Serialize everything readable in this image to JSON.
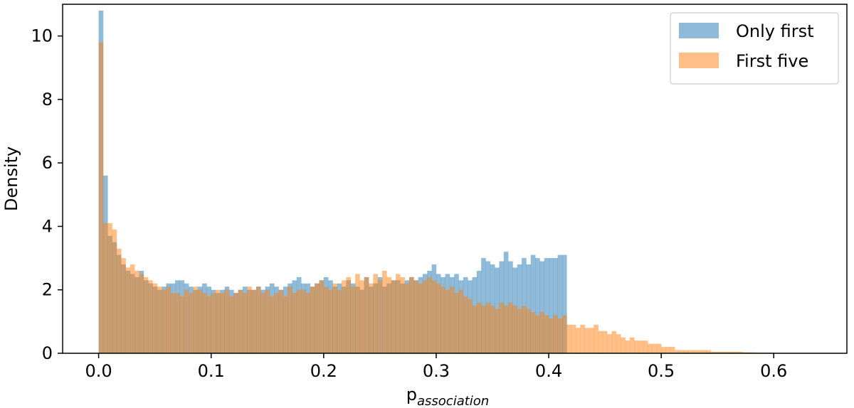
{
  "chart_data": {
    "type": "histogram",
    "title": "",
    "xlabel": "p",
    "xlabel_subscript": "association",
    "ylabel": "Density",
    "xlim": [
      -0.032,
      0.665
    ],
    "ylim": [
      0,
      11.0
    ],
    "xticks": [
      0.0,
      0.1,
      0.2,
      0.3,
      0.4,
      0.5,
      0.6
    ],
    "xtick_labels": [
      "0.0",
      "0.1",
      "0.2",
      "0.3",
      "0.4",
      "0.5",
      "0.6"
    ],
    "yticks": [
      0,
      2,
      4,
      6,
      8,
      10
    ],
    "ytick_labels": [
      "0",
      "2",
      "4",
      "6",
      "8",
      "10"
    ],
    "grid": false,
    "legend_position": "top-right",
    "series": [
      {
        "name": "Only first",
        "color": "#1f77b4",
        "alpha": 0.5,
        "bin_start": 0.0,
        "bin_width": 0.004,
        "values": [
          10.8,
          5.6,
          3.7,
          3.5,
          3.1,
          2.8,
          2.6,
          2.5,
          2.4,
          2.6,
          2.3,
          2.2,
          2.1,
          2.0,
          2.1,
          2.2,
          2.2,
          2.3,
          2.3,
          2.2,
          2.1,
          2.0,
          2.1,
          2.2,
          2.1,
          2.0,
          1.9,
          2.0,
          2.1,
          2.0,
          1.9,
          2.0,
          2.1,
          2.0,
          2.0,
          2.1,
          2.0,
          2.1,
          2.2,
          2.1,
          2.0,
          2.1,
          2.2,
          2.3,
          2.4,
          2.2,
          2.2,
          2.1,
          2.2,
          2.3,
          2.4,
          2.3,
          2.1,
          2.2,
          2.1,
          2.3,
          2.2,
          2.1,
          2.0,
          2.4,
          2.1,
          2.2,
          2.4,
          2.1,
          2.2,
          2.3,
          2.3,
          2.2,
          2.3,
          2.4,
          2.3,
          2.4,
          2.5,
          2.6,
          2.8,
          2.5,
          2.4,
          2.5,
          2.4,
          2.5,
          2.3,
          2.4,
          2.3,
          2.4,
          2.6,
          3.0,
          2.9,
          2.8,
          2.7,
          2.9,
          3.2,
          2.9,
          2.7,
          2.8,
          3.0,
          2.8,
          3.1,
          3.0,
          2.9,
          3.0,
          3.0,
          3.0,
          3.1,
          3.1
        ]
      },
      {
        "name": "First five",
        "color": "#ff7f0e",
        "alpha": 0.5,
        "bin_start": 0.0,
        "bin_width": 0.004,
        "values": [
          9.8,
          4.1,
          4.1,
          3.9,
          3.3,
          3.0,
          2.7,
          2.8,
          2.6,
          2.5,
          2.4,
          2.3,
          2.2,
          2.1,
          2.0,
          2.1,
          1.9,
          1.9,
          1.8,
          2.0,
          1.9,
          2.1,
          2.0,
          1.9,
          1.8,
          1.9,
          2.0,
          1.9,
          2.0,
          1.8,
          1.9,
          2.0,
          1.9,
          2.1,
          2.0,
          2.1,
          1.9,
          2.0,
          1.8,
          1.9,
          2.0,
          1.8,
          2.1,
          1.9,
          2.0,
          2.0,
          1.9,
          2.1,
          2.2,
          2.3,
          2.1,
          2.0,
          2.2,
          2.0,
          2.3,
          2.4,
          2.1,
          2.5,
          2.3,
          2.4,
          2.2,
          2.5,
          2.3,
          2.6,
          2.4,
          2.3,
          2.5,
          2.4,
          2.2,
          2.4,
          2.3,
          2.2,
          2.3,
          2.4,
          2.3,
          2.2,
          2.1,
          2.0,
          2.1,
          1.9,
          2.0,
          1.8,
          1.7,
          1.5,
          1.6,
          1.5,
          1.6,
          1.5,
          1.4,
          1.6,
          1.5,
          1.6,
          1.5,
          1.4,
          1.5,
          1.4,
          1.3,
          1.2,
          1.3,
          1.2,
          1.1,
          1.2,
          1.1,
          1.2,
          0.9,
          0.9,
          0.8,
          0.9,
          0.8,
          0.8,
          0.9,
          0.7,
          0.7,
          0.6,
          0.7,
          0.6,
          0.5,
          0.4,
          0.5,
          0.4,
          0.4,
          0.4,
          0.3,
          0.3,
          0.3,
          0.2,
          0.2,
          0.2,
          0.1,
          0.1,
          0.1,
          0.1,
          0.1,
          0.1,
          0.1,
          0.1,
          0.05,
          0.05,
          0.05,
          0.05,
          0.05,
          0.05,
          0.05,
          0.03,
          0.03,
          0.03,
          0.02,
          0.02,
          0.02,
          0.02,
          0.01,
          0.01,
          0.01,
          0.01,
          0.01,
          0.01,
          0.01,
          0.01,
          0.01
        ]
      }
    ]
  }
}
